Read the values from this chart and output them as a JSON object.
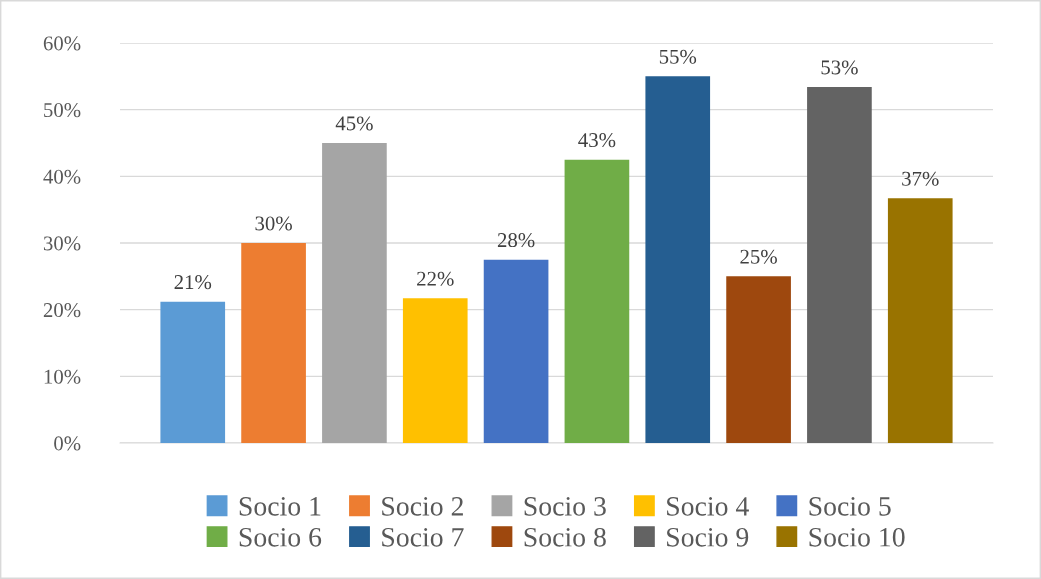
{
  "chart_data": {
    "type": "bar",
    "categories": [
      null,
      null,
      null,
      null,
      null,
      null,
      null,
      null,
      null,
      null
    ],
    "series": [
      {
        "name": "Socio 1",
        "color": "#5b9bd5",
        "values": [
          21.2,
          null,
          null,
          null,
          null,
          null,
          null,
          null,
          null,
          null
        ],
        "value_labels": [
          "21%",
          null,
          null,
          null,
          null,
          null,
          null,
          null,
          null,
          null
        ]
      },
      {
        "name": "Socio 2",
        "color": "#ed7d31",
        "values": [
          null,
          30,
          null,
          null,
          null,
          null,
          null,
          null,
          null,
          null
        ],
        "value_labels": [
          null,
          "30%",
          null,
          null,
          null,
          null,
          null,
          null,
          null,
          null
        ]
      },
      {
        "name": "Socio 3",
        "color": "#a5a5a5",
        "values": [
          null,
          null,
          45,
          null,
          null,
          null,
          null,
          null,
          null,
          null
        ],
        "value_labels": [
          null,
          null,
          "45%",
          null,
          null,
          null,
          null,
          null,
          null,
          null
        ]
      },
      {
        "name": "Socio 4",
        "color": "#ffc000",
        "values": [
          null,
          null,
          null,
          21.7,
          null,
          null,
          null,
          null,
          null,
          null
        ],
        "value_labels": [
          null,
          null,
          null,
          "22%",
          null,
          null,
          null,
          null,
          null,
          null
        ]
      },
      {
        "name": "Socio 5",
        "color": "#4472c4",
        "values": [
          null,
          null,
          null,
          null,
          27.5,
          null,
          null,
          null,
          null,
          null
        ],
        "value_labels": [
          null,
          null,
          null,
          null,
          "28%",
          null,
          null,
          null,
          null,
          null
        ]
      },
      {
        "name": "Socio 6",
        "color": "#70ad47",
        "values": [
          null,
          null,
          null,
          null,
          null,
          42.5,
          null,
          null,
          null,
          null
        ],
        "value_labels": [
          null,
          null,
          null,
          null,
          null,
          "43%",
          null,
          null,
          null,
          null
        ]
      },
      {
        "name": "Socio 7",
        "color": "#255e91",
        "values": [
          null,
          null,
          null,
          null,
          null,
          null,
          55,
          null,
          null,
          null
        ],
        "value_labels": [
          null,
          null,
          null,
          null,
          null,
          null,
          "55%",
          null,
          null,
          null
        ]
      },
      {
        "name": "Socio 8",
        "color": "#9e480e",
        "values": [
          null,
          null,
          null,
          null,
          null,
          null,
          null,
          25,
          null,
          null
        ],
        "value_labels": [
          null,
          null,
          null,
          null,
          null,
          null,
          null,
          "25%",
          null,
          null
        ]
      },
      {
        "name": "Socio 9",
        "color": "#636363",
        "values": [
          null,
          null,
          null,
          null,
          null,
          null,
          null,
          null,
          53.4,
          null
        ],
        "value_labels": [
          null,
          null,
          null,
          null,
          null,
          null,
          null,
          null,
          "53%",
          null
        ]
      },
      {
        "name": "Socio 10",
        "color": "#997300",
        "values": [
          null,
          null,
          null,
          null,
          null,
          null,
          null,
          null,
          null,
          36.7
        ],
        "value_labels": [
          null,
          null,
          null,
          null,
          null,
          null,
          null,
          null,
          null,
          "37%"
        ]
      }
    ],
    "ylim": [
      0,
      60
    ],
    "yticks": [
      {
        "value": 0,
        "label": "0%"
      },
      {
        "value": 10,
        "label": "10%"
      },
      {
        "value": 20,
        "label": "20%"
      },
      {
        "value": 30,
        "label": "30%"
      },
      {
        "value": 40,
        "label": "40%"
      },
      {
        "value": 50,
        "label": "50%"
      },
      {
        "value": 60,
        "label": "60%"
      }
    ],
    "grid": "y",
    "legend": "bottom"
  }
}
